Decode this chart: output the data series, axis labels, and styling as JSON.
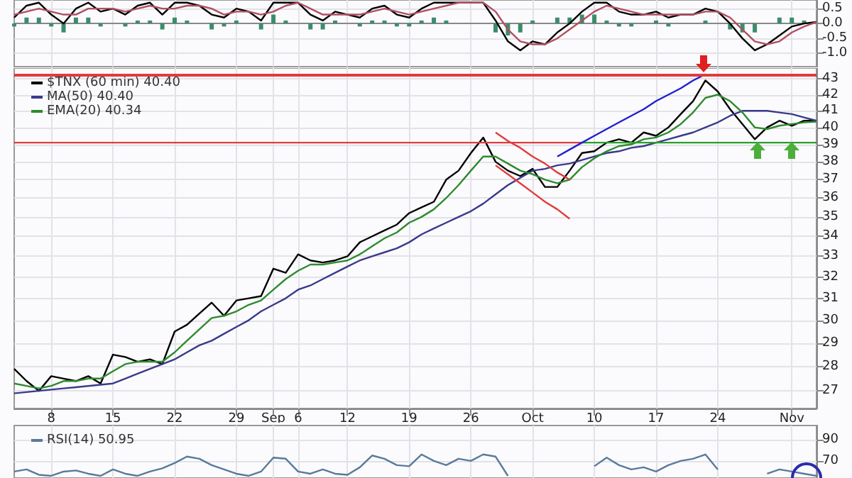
{
  "chart_data": [
    {
      "type": "line",
      "categories": [
        null,
        null,
        null,
        null,
        null,
        null,
        null,
        null,
        null,
        null,
        null,
        null,
        null,
        null,
        null,
        null,
        null,
        null,
        null,
        null,
        null,
        null,
        null,
        null,
        null,
        null,
        null,
        null,
        null,
        null,
        null,
        null,
        null,
        null,
        null,
        null,
        null,
        null,
        null,
        null,
        null,
        null,
        null,
        null,
        null,
        null,
        null,
        null,
        null,
        null,
        null,
        null,
        null,
        null,
        null,
        null,
        null,
        null,
        null,
        null,
        null,
        null,
        null,
        null,
        null,
        null
      ],
      "series": [
        {
          "color": "#000000",
          "values": [
            0.2,
            0.6,
            0.7,
            0.3,
            0.0,
            0.5,
            0.7,
            0.4,
            0.5,
            0.3,
            0.6,
            0.7,
            0.3,
            0.7,
            0.7,
            0.6,
            0.3,
            0.2,
            0.5,
            0.4,
            0.1,
            0.7,
            0.7,
            0.7,
            0.3,
            0.1,
            0.4,
            0.3,
            0.2,
            0.5,
            0.6,
            0.3,
            0.2,
            0.5,
            0.7,
            0.7,
            0.7,
            0.7,
            0.7,
            0.1,
            -0.6,
            -0.9,
            -0.6,
            -0.7,
            -0.3,
            0.0,
            0.4,
            0.7,
            0.7,
            0.4,
            0.3,
            0.3,
            0.4,
            0.2,
            0.3,
            0.3,
            0.5,
            0.4,
            0.0,
            -0.5,
            -0.9,
            -0.7,
            -0.4,
            -0.1,
            0.0,
            0.05
          ]
        },
        {
          "color": "#b05060",
          "values": [
            0.3,
            0.4,
            0.5,
            0.4,
            0.3,
            0.3,
            0.5,
            0.5,
            0.5,
            0.4,
            0.5,
            0.6,
            0.5,
            0.5,
            0.6,
            0.6,
            0.5,
            0.3,
            0.4,
            0.4,
            0.3,
            0.4,
            0.6,
            0.7,
            0.5,
            0.3,
            0.3,
            0.3,
            0.3,
            0.4,
            0.5,
            0.4,
            0.3,
            0.4,
            0.5,
            0.6,
            0.7,
            0.7,
            0.7,
            0.4,
            -0.2,
            -0.6,
            -0.7,
            -0.7,
            -0.5,
            -0.2,
            0.1,
            0.4,
            0.6,
            0.5,
            0.4,
            0.3,
            0.3,
            0.3,
            0.3,
            0.3,
            0.4,
            0.4,
            0.2,
            -0.2,
            -0.6,
            -0.7,
            -0.6,
            -0.3,
            -0.1,
            0.05
          ]
        },
        {
          "type": "bar",
          "color": "#3c8c6c",
          "values": [
            -0.1,
            0.2,
            0.2,
            -0.1,
            -0.3,
            0.2,
            0.2,
            -0.1,
            0,
            -0.1,
            0.1,
            0.1,
            -0.2,
            0.2,
            0.1,
            0,
            -0.2,
            -0.1,
            0.1,
            0,
            -0.2,
            0.3,
            0.1,
            0,
            -0.2,
            -0.2,
            0.1,
            0,
            -0.1,
            0.1,
            0.1,
            -0.1,
            -0.1,
            0.1,
            0.2,
            0.1,
            0,
            0,
            0,
            -0.3,
            -0.4,
            -0.3,
            0.1,
            0,
            0.2,
            0.2,
            0.3,
            0.3,
            0.1,
            -0.1,
            -0.1,
            0,
            0.1,
            -0.1,
            0,
            0,
            0.1,
            0,
            -0.2,
            -0.3,
            -0.3,
            0,
            0.2,
            0.2,
            0.1,
            0
          ]
        }
      ],
      "ylim": [
        -1.45,
        0.79
      ],
      "yticks": [
        {
          "value": -1,
          "label": "-1.0"
        },
        {
          "value": -0.5,
          "label": "-0.5"
        },
        {
          "value": 0,
          "label": "0.0"
        },
        0.5
      ],
      "grid": true,
      "tick_labels": "y"
    },
    {
      "type": "line",
      "categories": [
        null,
        null,
        null,
        "8",
        null,
        null,
        null,
        null,
        "15",
        null,
        null,
        null,
        null,
        "22",
        null,
        null,
        null,
        null,
        "29",
        null,
        null,
        "Sep",
        null,
        "6",
        null,
        null,
        null,
        "12",
        null,
        null,
        null,
        null,
        "19",
        null,
        null,
        null,
        null,
        "26",
        null,
        null,
        null,
        null,
        "Oct",
        null,
        null,
        null,
        null,
        "10",
        null,
        null,
        null,
        null,
        "17",
        null,
        null,
        null,
        null,
        "24",
        null,
        null,
        null,
        null,
        null,
        "Nov",
        null,
        null
      ],
      "series": [
        {
          "name": "$TNX (60 min) 40.40",
          "color": "#000000",
          "values": [
            27.9,
            27.4,
            27.0,
            27.6,
            27.5,
            27.4,
            27.6,
            27.3,
            28.5,
            28.4,
            28.2,
            28.3,
            28.1,
            29.5,
            29.8,
            30.3,
            30.8,
            30.2,
            30.9,
            31.0,
            31.1,
            32.4,
            32.2,
            33.1,
            32.8,
            32.7,
            32.8,
            33.0,
            33.7,
            34.0,
            34.3,
            34.6,
            35.2,
            35.5,
            35.8,
            37.0,
            37.5,
            38.5,
            39.4,
            38.0,
            37.5,
            37.2,
            37.6,
            36.6,
            36.6,
            37.5,
            38.5,
            38.6,
            39.1,
            39.3,
            39.1,
            39.7,
            39.5,
            40.0,
            40.8,
            41.6,
            42.9,
            42.2,
            41.1,
            40.2,
            39.3,
            40.0,
            40.4,
            40.1,
            40.4,
            40.4
          ]
        },
        {
          "name": "MA(50) 40.40",
          "color": "#3a3a8c",
          "values": [
            26.9,
            26.95,
            27.0,
            27.05,
            27.1,
            27.15,
            27.2,
            27.25,
            27.3,
            27.5,
            27.7,
            27.9,
            28.1,
            28.3,
            28.6,
            28.9,
            29.1,
            29.4,
            29.7,
            30.0,
            30.4,
            30.7,
            31.0,
            31.4,
            31.6,
            31.9,
            32.2,
            32.5,
            32.8,
            33.0,
            33.2,
            33.4,
            33.7,
            34.1,
            34.4,
            34.7,
            35.0,
            35.3,
            35.7,
            36.2,
            36.7,
            37.1,
            37.5,
            37.6,
            37.8,
            37.9,
            38.1,
            38.3,
            38.5,
            38.6,
            38.8,
            38.9,
            39.1,
            39.3,
            39.5,
            39.7,
            40.0,
            40.3,
            40.7,
            41.0,
            41.0,
            41.0,
            40.9,
            40.8,
            40.6,
            40.4
          ]
        },
        {
          "name": "EMA(20) 40.34",
          "color": "#2e8b2e",
          "values": [
            27.3,
            27.2,
            27.1,
            27.2,
            27.4,
            27.4,
            27.5,
            27.5,
            27.8,
            28.1,
            28.2,
            28.2,
            28.2,
            28.6,
            29.1,
            29.6,
            30.1,
            30.2,
            30.4,
            30.7,
            30.9,
            31.4,
            31.9,
            32.3,
            32.6,
            32.6,
            32.7,
            32.8,
            33.1,
            33.5,
            33.9,
            34.2,
            34.7,
            35.0,
            35.4,
            36.0,
            36.7,
            37.5,
            38.3,
            38.3,
            37.9,
            37.5,
            37.3,
            37.0,
            36.8,
            37.0,
            37.7,
            38.2,
            38.6,
            38.9,
            39.0,
            39.3,
            39.4,
            39.7,
            40.2,
            40.9,
            41.8,
            42.0,
            41.6,
            40.9,
            40.0,
            39.9,
            40.1,
            40.2,
            40.3,
            40.34
          ]
        },
        {
          "color": "#e03c3c",
          "values": [
            39.1,
            39.1,
            39.1,
            39.1,
            39.1,
            39.1,
            39.1,
            39.1,
            39.1,
            39.1,
            39.1,
            39.1,
            39.1,
            39.1,
            39.1,
            39.1,
            39.1,
            39.1,
            39.1,
            39.1,
            39.1,
            39.1,
            39.1,
            39.1,
            39.1,
            39.1,
            39.1,
            39.1,
            39.1,
            39.1,
            39.1,
            39.1,
            39.1,
            39.1,
            39.1,
            39.1,
            39.1,
            39.1,
            39.1,
            39.1,
            39.1,
            39.1,
            39.1,
            39.1,
            39.1,
            39.1,
            39.1,
            null,
            null,
            null,
            null,
            null,
            null,
            null,
            null,
            null,
            null,
            null,
            null,
            null,
            null,
            null,
            null,
            null,
            null,
            null
          ]
        },
        {
          "color": "#2aa02a",
          "values": [
            null,
            null,
            null,
            null,
            null,
            null,
            null,
            null,
            null,
            null,
            null,
            null,
            null,
            null,
            null,
            null,
            null,
            null,
            null,
            null,
            null,
            null,
            null,
            null,
            null,
            null,
            null,
            null,
            null,
            null,
            null,
            null,
            null,
            null,
            null,
            null,
            null,
            null,
            null,
            null,
            null,
            null,
            null,
            null,
            null,
            null,
            39.1,
            39.1,
            39.1,
            39.1,
            39.1,
            39.1,
            39.1,
            39.1,
            39.1,
            39.1,
            39.1,
            39.1,
            39.1,
            39.1,
            39.1,
            39.1,
            39.1,
            39.1,
            39.1,
            39.1
          ]
        },
        {
          "color": "#e03c3c",
          "values": [
            null,
            null,
            null,
            null,
            null,
            null,
            null,
            null,
            null,
            null,
            null,
            null,
            null,
            null,
            null,
            null,
            null,
            null,
            null,
            null,
            null,
            null,
            null,
            null,
            null,
            null,
            null,
            null,
            null,
            null,
            null,
            null,
            null,
            null,
            null,
            null,
            null,
            null,
            null,
            39.7,
            39.2,
            38.8,
            38.3,
            37.9,
            37.4,
            37.0,
            null,
            null,
            null,
            null,
            null,
            null,
            null,
            null,
            null,
            null,
            null,
            null,
            null,
            null,
            null,
            null,
            null,
            null,
            null,
            null
          ]
        },
        {
          "color": "#e03c3c",
          "values": [
            null,
            null,
            null,
            null,
            null,
            null,
            null,
            null,
            null,
            null,
            null,
            null,
            null,
            null,
            null,
            null,
            null,
            null,
            null,
            null,
            null,
            null,
            null,
            null,
            null,
            null,
            null,
            null,
            null,
            null,
            null,
            null,
            null,
            null,
            null,
            null,
            null,
            null,
            null,
            37.8,
            37.3,
            36.8,
            36.3,
            35.8,
            35.4,
            34.9,
            null,
            null,
            null,
            null,
            null,
            null,
            null,
            null,
            null,
            null,
            null,
            null,
            null,
            null,
            null,
            null,
            null,
            null,
            null,
            null
          ]
        },
        {
          "color": "#2020d0",
          "values": [
            null,
            null,
            null,
            null,
            null,
            null,
            null,
            null,
            null,
            null,
            null,
            null,
            null,
            null,
            null,
            null,
            null,
            null,
            null,
            null,
            null,
            null,
            null,
            null,
            null,
            null,
            null,
            null,
            null,
            null,
            null,
            null,
            null,
            null,
            null,
            null,
            null,
            null,
            null,
            null,
            null,
            null,
            null,
            null,
            38.3,
            38.7,
            39.1,
            39.5,
            39.9,
            40.3,
            40.7,
            41.1,
            41.6,
            42.0,
            42.4,
            42.9,
            43.3,
            null,
            null,
            null,
            null,
            null,
            null,
            null,
            null,
            null
          ]
        }
      ],
      "ref_lines": [
        {
          "axis": "y",
          "value": 43.3,
          "color": "#e03c3c"
        }
      ],
      "log": true,
      "ylim": [
        26.3,
        43.7
      ],
      "yticks": [
        27,
        28,
        29,
        30,
        31,
        32,
        33,
        34,
        35,
        36,
        37,
        38,
        39,
        40,
        41,
        42,
        43
      ],
      "grid": true,
      "legend": "top left"
    },
    {
      "type": "line",
      "categories": [
        null,
        null,
        null,
        null,
        null,
        null,
        null,
        null,
        null,
        null,
        null,
        null,
        null,
        null,
        null,
        null,
        null,
        null,
        null,
        null,
        null,
        null,
        null,
        null,
        null,
        null,
        null,
        null,
        null,
        null,
        null,
        null,
        null,
        null,
        null,
        null,
        null,
        null,
        null,
        null,
        null,
        null,
        null,
        null,
        null,
        null,
        null,
        null,
        null,
        null,
        null,
        null,
        null,
        null,
        null,
        null,
        null,
        null,
        null,
        null,
        null,
        null,
        null,
        null,
        null,
        null
      ],
      "series": [
        {
          "name": "RSI(14) 50.95",
          "color": "#5a7a9a",
          "values": [
            60,
            62,
            57,
            56,
            60,
            61,
            58,
            56,
            62,
            58,
            56,
            60,
            63,
            68,
            74,
            72,
            66,
            62,
            58,
            56,
            60,
            73,
            72,
            60,
            58,
            62,
            58,
            57,
            64,
            75,
            72,
            66,
            65,
            76,
            70,
            66,
            72,
            70,
            76,
            74,
            56,
            null,
            null,
            null,
            null,
            null,
            null,
            65,
            73,
            66,
            62,
            64,
            60,
            66,
            70,
            72,
            76,
            62,
            null,
            null,
            null,
            58,
            62,
            60,
            58,
            56
          ]
        }
      ],
      "ylim": [
        54,
        103
      ],
      "yticks": [
        70,
        90
      ],
      "grid": true,
      "tick_labels": "y",
      "legend": "top left"
    }
  ]
}
